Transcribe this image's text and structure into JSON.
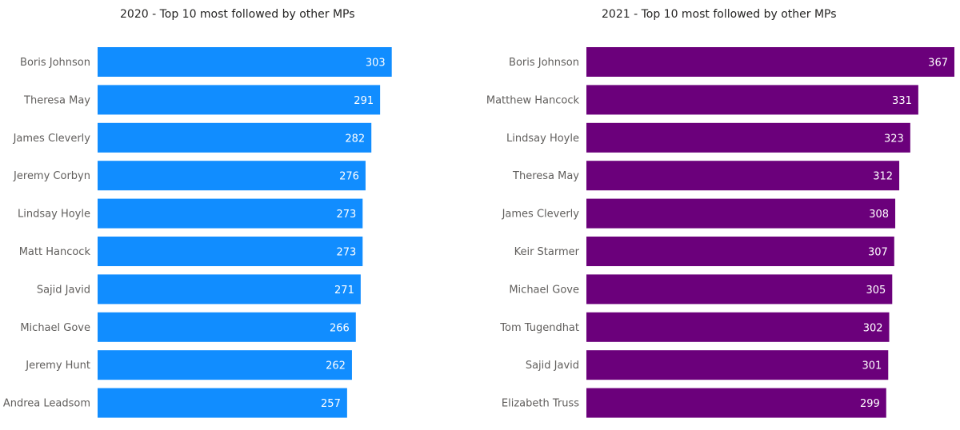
{
  "chart_data": [
    {
      "type": "bar",
      "orientation": "horizontal",
      "title": "2020 - Top 10 most followed by other MPs",
      "categories": [
        "Boris Johnson",
        "Theresa May",
        "James Cleverly",
        "Jeremy Corbyn",
        "Lindsay Hoyle",
        "Matt Hancock",
        "Sajid Javid",
        "Michael Gove",
        "Jeremy Hunt",
        "Andrea Leadsom"
      ],
      "values": [
        303,
        291,
        282,
        276,
        273,
        273,
        271,
        266,
        262,
        257
      ],
      "color": "#118DFF",
      "xlim": [
        0,
        370
      ],
      "grid": false,
      "data_labels": true
    },
    {
      "type": "bar",
      "orientation": "horizontal",
      "title": "2021 - Top 10 most followed by other MPs",
      "categories": [
        "Boris Johnson",
        "Matthew Hancock",
        "Lindsay Hoyle",
        "Theresa May",
        "James Cleverly",
        "Keir Starmer",
        "Michael Gove",
        "Tom Tugendhat",
        "Sajid Javid",
        "Elizabeth Truss"
      ],
      "values": [
        367,
        331,
        323,
        312,
        308,
        307,
        305,
        302,
        301,
        299
      ],
      "color": "#6B007B",
      "xlim": [
        0,
        367
      ],
      "grid": false,
      "data_labels": true
    }
  ]
}
